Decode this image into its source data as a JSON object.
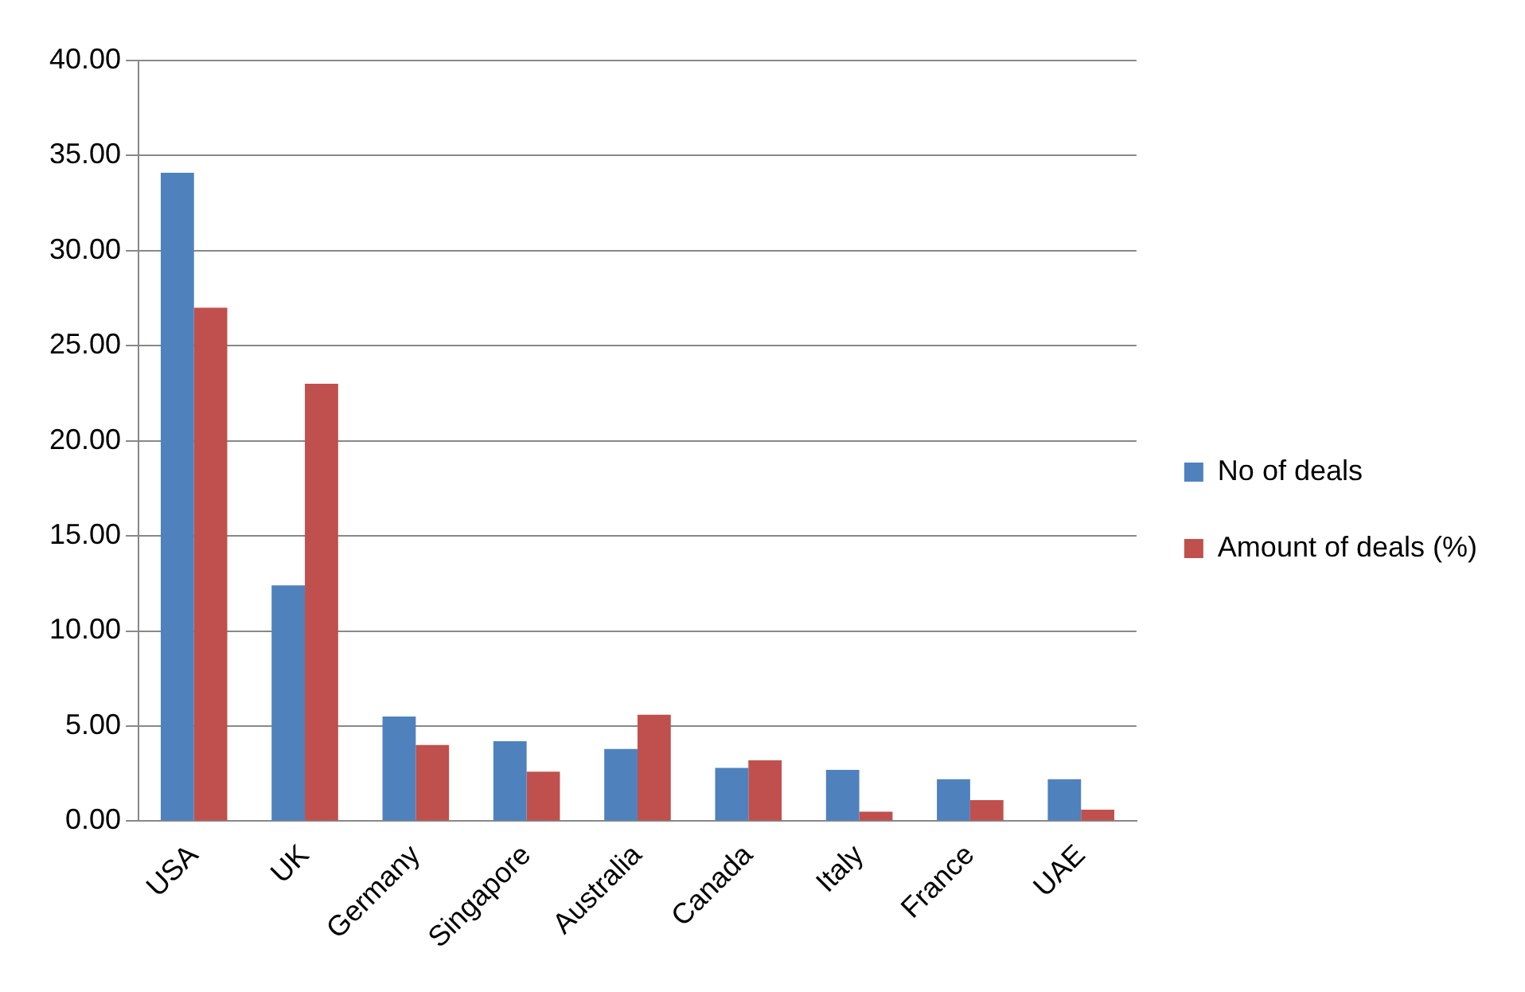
{
  "chart_data": {
    "type": "bar",
    "categories": [
      "USA",
      "UK",
      "Germany",
      "Singapore",
      "Australia",
      "Canada",
      "Italy",
      "France",
      "UAE"
    ],
    "series": [
      {
        "name": "No of deals",
        "color": "#4f81bd",
        "values": [
          34.1,
          12.4,
          5.5,
          4.2,
          3.8,
          2.8,
          2.7,
          2.2,
          2.2
        ]
      },
      {
        "name": "Amount of deals (%)",
        "color": "#c0504d",
        "values": [
          27.0,
          23.0,
          4.0,
          2.6,
          5.6,
          3.2,
          0.5,
          1.1,
          0.6
        ]
      }
    ],
    "ylim": [
      0,
      40
    ],
    "yticks": [
      {
        "value": 0,
        "label": "0.00"
      },
      {
        "value": 5,
        "label": "5.00"
      },
      {
        "value": 10,
        "label": "10.00"
      },
      {
        "value": 15,
        "label": "15.00"
      },
      {
        "value": 20,
        "label": "20.00"
      },
      {
        "value": 25,
        "label": "25.00"
      },
      {
        "value": 30,
        "label": "30.00"
      },
      {
        "value": 35,
        "label": "35.00"
      },
      {
        "value": 40,
        "label": "40.00"
      }
    ],
    "grid": "y",
    "legend": "right"
  }
}
